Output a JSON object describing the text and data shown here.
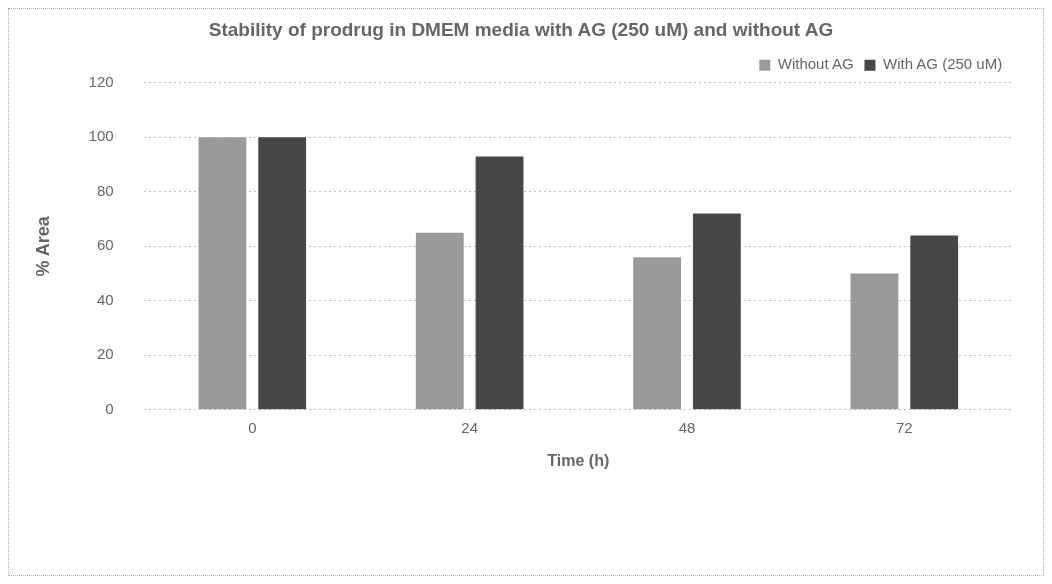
{
  "chart_data": {
    "type": "bar",
    "title": "Stability of prodrug in DMEM media with AG (250 uM) and without AG",
    "xlabel": "Time (h)",
    "ylabel": "% Area",
    "categories": [
      "0",
      "24",
      "48",
      "72"
    ],
    "series": [
      {
        "name": "Without AG",
        "color": "#9a9a9a",
        "values": [
          100,
          65,
          56,
          50
        ]
      },
      {
        "name": "With AG (250 uM)",
        "color": "#474747",
        "values": [
          100,
          93,
          72,
          64
        ]
      }
    ],
    "ylim": [
      0,
      120
    ],
    "yticks": [
      0,
      20,
      40,
      60,
      80,
      100,
      120
    ],
    "grid": "y",
    "legend": "top right"
  }
}
